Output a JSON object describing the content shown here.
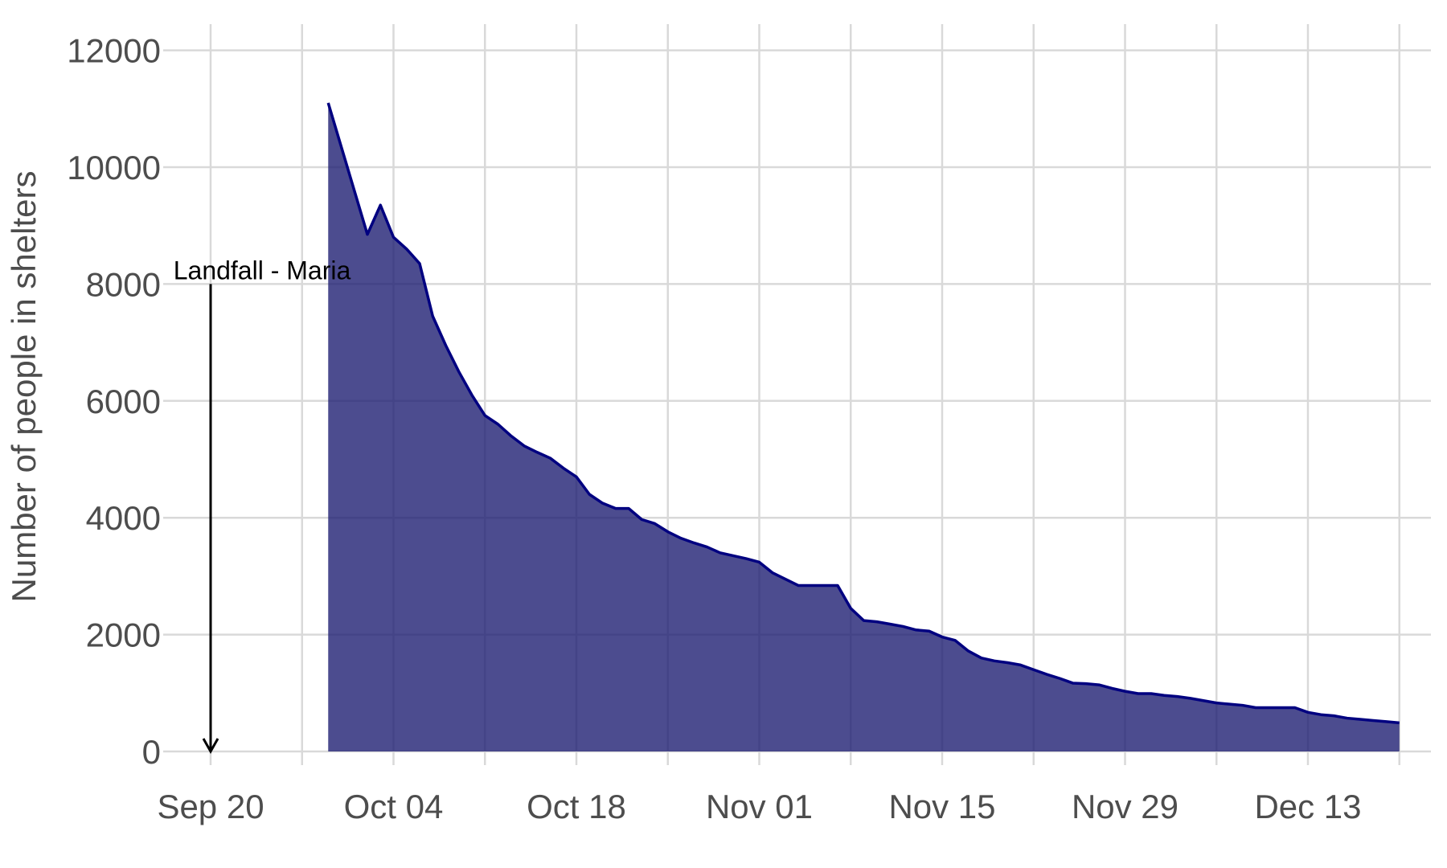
{
  "chart_data": {
    "type": "area",
    "title": "",
    "xlabel": "",
    "ylabel": "Number of people in shelters",
    "xlim": [
      "2017-09-20",
      "2017-12-22"
    ],
    "ylim": [
      0,
      12000
    ],
    "grid": true,
    "x_ticks": [
      {
        "date": "2017-09-20",
        "label": "Sep 20"
      },
      {
        "date": "2017-10-04",
        "label": "Oct 04"
      },
      {
        "date": "2017-10-18",
        "label": "Oct 18"
      },
      {
        "date": "2017-11-01",
        "label": "Nov 01"
      },
      {
        "date": "2017-11-15",
        "label": "Nov 15"
      },
      {
        "date": "2017-11-29",
        "label": "Nov 29"
      },
      {
        "date": "2017-12-13",
        "label": "Dec 13"
      }
    ],
    "y_ticks": [
      0,
      2000,
      4000,
      6000,
      8000,
      10000,
      12000
    ],
    "annotation": {
      "text": "Landfall - Maria",
      "date": "2017-09-20",
      "y_from": 8000,
      "y_to": 0
    },
    "series": [
      {
        "color": "#000080",
        "fill": "#191970",
        "x": [
          "2017-09-29",
          "2017-10-02",
          "2017-10-03",
          "2017-10-04",
          "2017-10-05",
          "2017-10-06",
          "2017-10-07",
          "2017-10-08",
          "2017-10-09",
          "2017-10-10",
          "2017-10-11",
          "2017-10-12",
          "2017-10-13",
          "2017-10-14",
          "2017-10-15",
          "2017-10-16",
          "2017-10-17",
          "2017-10-18",
          "2017-10-19",
          "2017-10-20",
          "2017-10-21",
          "2017-10-22",
          "2017-10-23",
          "2017-10-24",
          "2017-10-25",
          "2017-10-26",
          "2017-10-27",
          "2017-10-28",
          "2017-10-29",
          "2017-10-30",
          "2017-10-31",
          "2017-11-01",
          "2017-11-02",
          "2017-11-03",
          "2017-11-04",
          "2017-11-05",
          "2017-11-06",
          "2017-11-07",
          "2017-11-08",
          "2017-11-09",
          "2017-11-10",
          "2017-11-11",
          "2017-11-12",
          "2017-11-13",
          "2017-11-14",
          "2017-11-15",
          "2017-11-16",
          "2017-11-17",
          "2017-11-18",
          "2017-11-19",
          "2017-11-20",
          "2017-11-21",
          "2017-11-22",
          "2017-11-23",
          "2017-11-24",
          "2017-11-25",
          "2017-11-26",
          "2017-11-27",
          "2017-11-28",
          "2017-11-29",
          "2017-11-30",
          "2017-12-01",
          "2017-12-02",
          "2017-12-03",
          "2017-12-04",
          "2017-12-05",
          "2017-12-06",
          "2017-12-07",
          "2017-12-08",
          "2017-12-09",
          "2017-12-10",
          "2017-12-11",
          "2017-12-12",
          "2017-12-13",
          "2017-12-14",
          "2017-12-15",
          "2017-12-16",
          "2017-12-17",
          "2017-12-18",
          "2017-12-19",
          "2017-12-20"
        ],
        "values": [
          11100,
          8850,
          9350,
          8800,
          8600,
          8350,
          7450,
          6950,
          6500,
          6100,
          5750,
          5600,
          5400,
          5230,
          5120,
          5020,
          4850,
          4700,
          4400,
          4250,
          4160,
          4160,
          3970,
          3900,
          3760,
          3650,
          3570,
          3500,
          3400,
          3350,
          3300,
          3240,
          3060,
          2950,
          2840,
          2840,
          2840,
          2840,
          2450,
          2240,
          2220,
          2180,
          2140,
          2080,
          2060,
          1960,
          1900,
          1720,
          1600,
          1550,
          1520,
          1480,
          1400,
          1320,
          1250,
          1170,
          1160,
          1140,
          1080,
          1030,
          990,
          990,
          960,
          940,
          910,
          870,
          830,
          810,
          790,
          750,
          750,
          750,
          750,
          670,
          630,
          610,
          570,
          550,
          530,
          510,
          490
        ]
      }
    ]
  }
}
